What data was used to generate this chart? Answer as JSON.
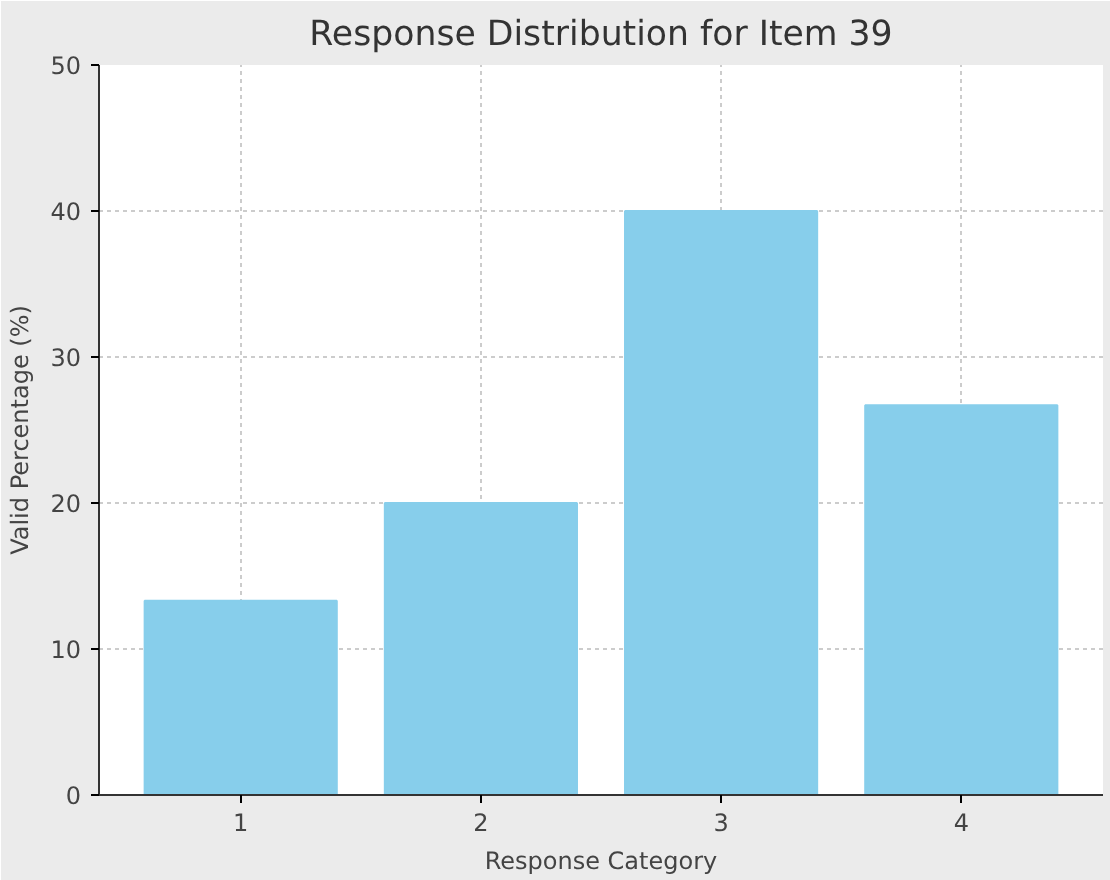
{
  "chart_data": {
    "type": "bar",
    "title": "Response Distribution for Item 39",
    "xlabel": "Response Category",
    "ylabel": "Valid Percentage (%)",
    "categories": [
      "1",
      "2",
      "3",
      "4"
    ],
    "values": [
      13.3,
      20,
      40,
      26.7
    ],
    "color": "#87ceeb",
    "ylim": [
      0,
      50
    ],
    "yticks": [
      0,
      10,
      20,
      30,
      40,
      50
    ],
    "grid": true
  }
}
